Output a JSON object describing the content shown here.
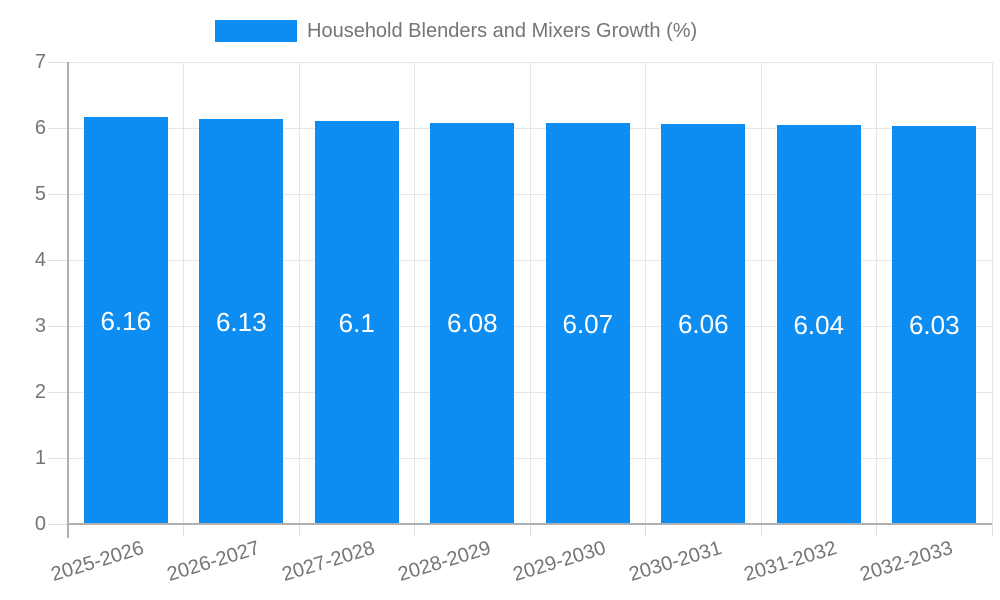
{
  "legend": {
    "label": "Household Blenders and Mixers Growth (%)"
  },
  "chart_data": {
    "type": "bar",
    "title": "Household Blenders and Mixers Growth (%)",
    "categories": [
      "2025-2026",
      "2026-2027",
      "2027-2028",
      "2028-2029",
      "2029-2030",
      "2030-2031",
      "2031-2032",
      "2032-2033"
    ],
    "values": [
      6.16,
      6.13,
      6.1,
      6.08,
      6.07,
      6.06,
      6.04,
      6.03
    ],
    "value_labels": [
      "6.16",
      "6.13",
      "6.1",
      "6.08",
      "6.07",
      "6.06",
      "6.04",
      "6.03"
    ],
    "xlabel": "",
    "ylabel": "",
    "ylim": [
      0,
      7
    ],
    "yticks": [
      0,
      1,
      2,
      3,
      4,
      5,
      6,
      7
    ],
    "grid": true,
    "legend_position": "top",
    "bar_color": "#0d8df2",
    "value_label_color": "#ffffff",
    "axis_text_color": "#757575",
    "grid_color": "#e6e6e6",
    "tick_color": "#e0e0e0",
    "axis_line_color": "#b0b0b0"
  }
}
